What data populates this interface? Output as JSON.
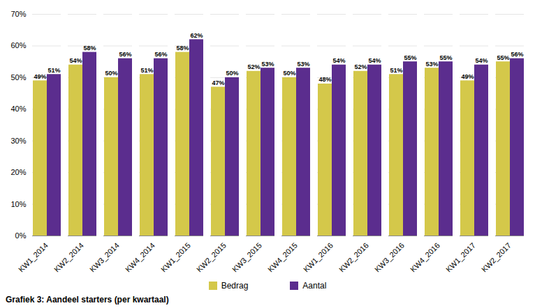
{
  "chart_data": {
    "type": "bar",
    "caption": "Grafiek 3: Aandeel starters (per kwartaal)",
    "categories": [
      "KW1_2014",
      "KW2_2014",
      "KW3_2014",
      "KW4_2014",
      "KW1_2015",
      "KW2_2015",
      "KW3_2015",
      "KW4_2015",
      "KW1_2016",
      "KW2_2016",
      "KW3_2016",
      "KW4_2016",
      "KW1_2017",
      "KW2_2017"
    ],
    "series": [
      {
        "name": "Bedrag",
        "color": "#D4C84A",
        "values": [
          49,
          54,
          50,
          51,
          58,
          47,
          52,
          50,
          48,
          52,
          51,
          53,
          49,
          55
        ],
        "value_labels": [
          "49%",
          "54%",
          "50%",
          "51%",
          "58%",
          "47%",
          "52%",
          "50%",
          "48%",
          "52%",
          "51%",
          "53%",
          "49%",
          "55%"
        ]
      },
      {
        "name": "Aantal",
        "color": "#5B2D8E",
        "values": [
          51,
          58,
          56,
          56,
          62,
          50,
          53,
          53,
          54,
          54,
          55,
          55,
          54,
          56
        ],
        "value_labels": [
          "51%",
          "58%",
          "56%",
          "56%",
          "62%",
          "50%",
          "53%",
          "53%",
          "54%",
          "54%",
          "55%",
          "55%",
          "54%",
          "56%"
        ]
      }
    ],
    "ylim": [
      0,
      70
    ],
    "yticks": [
      {
        "value": 0,
        "label": "0%"
      },
      {
        "value": 10,
        "label": "10%"
      },
      {
        "value": 20,
        "label": "20%"
      },
      {
        "value": 30,
        "label": "30%"
      },
      {
        "value": 40,
        "label": "40%"
      },
      {
        "value": 50,
        "label": "50%"
      },
      {
        "value": 60,
        "label": "60%"
      },
      {
        "value": 70,
        "label": "70%"
      }
    ],
    "grid": true,
    "legend": "bottom",
    "data_labels": true
  }
}
